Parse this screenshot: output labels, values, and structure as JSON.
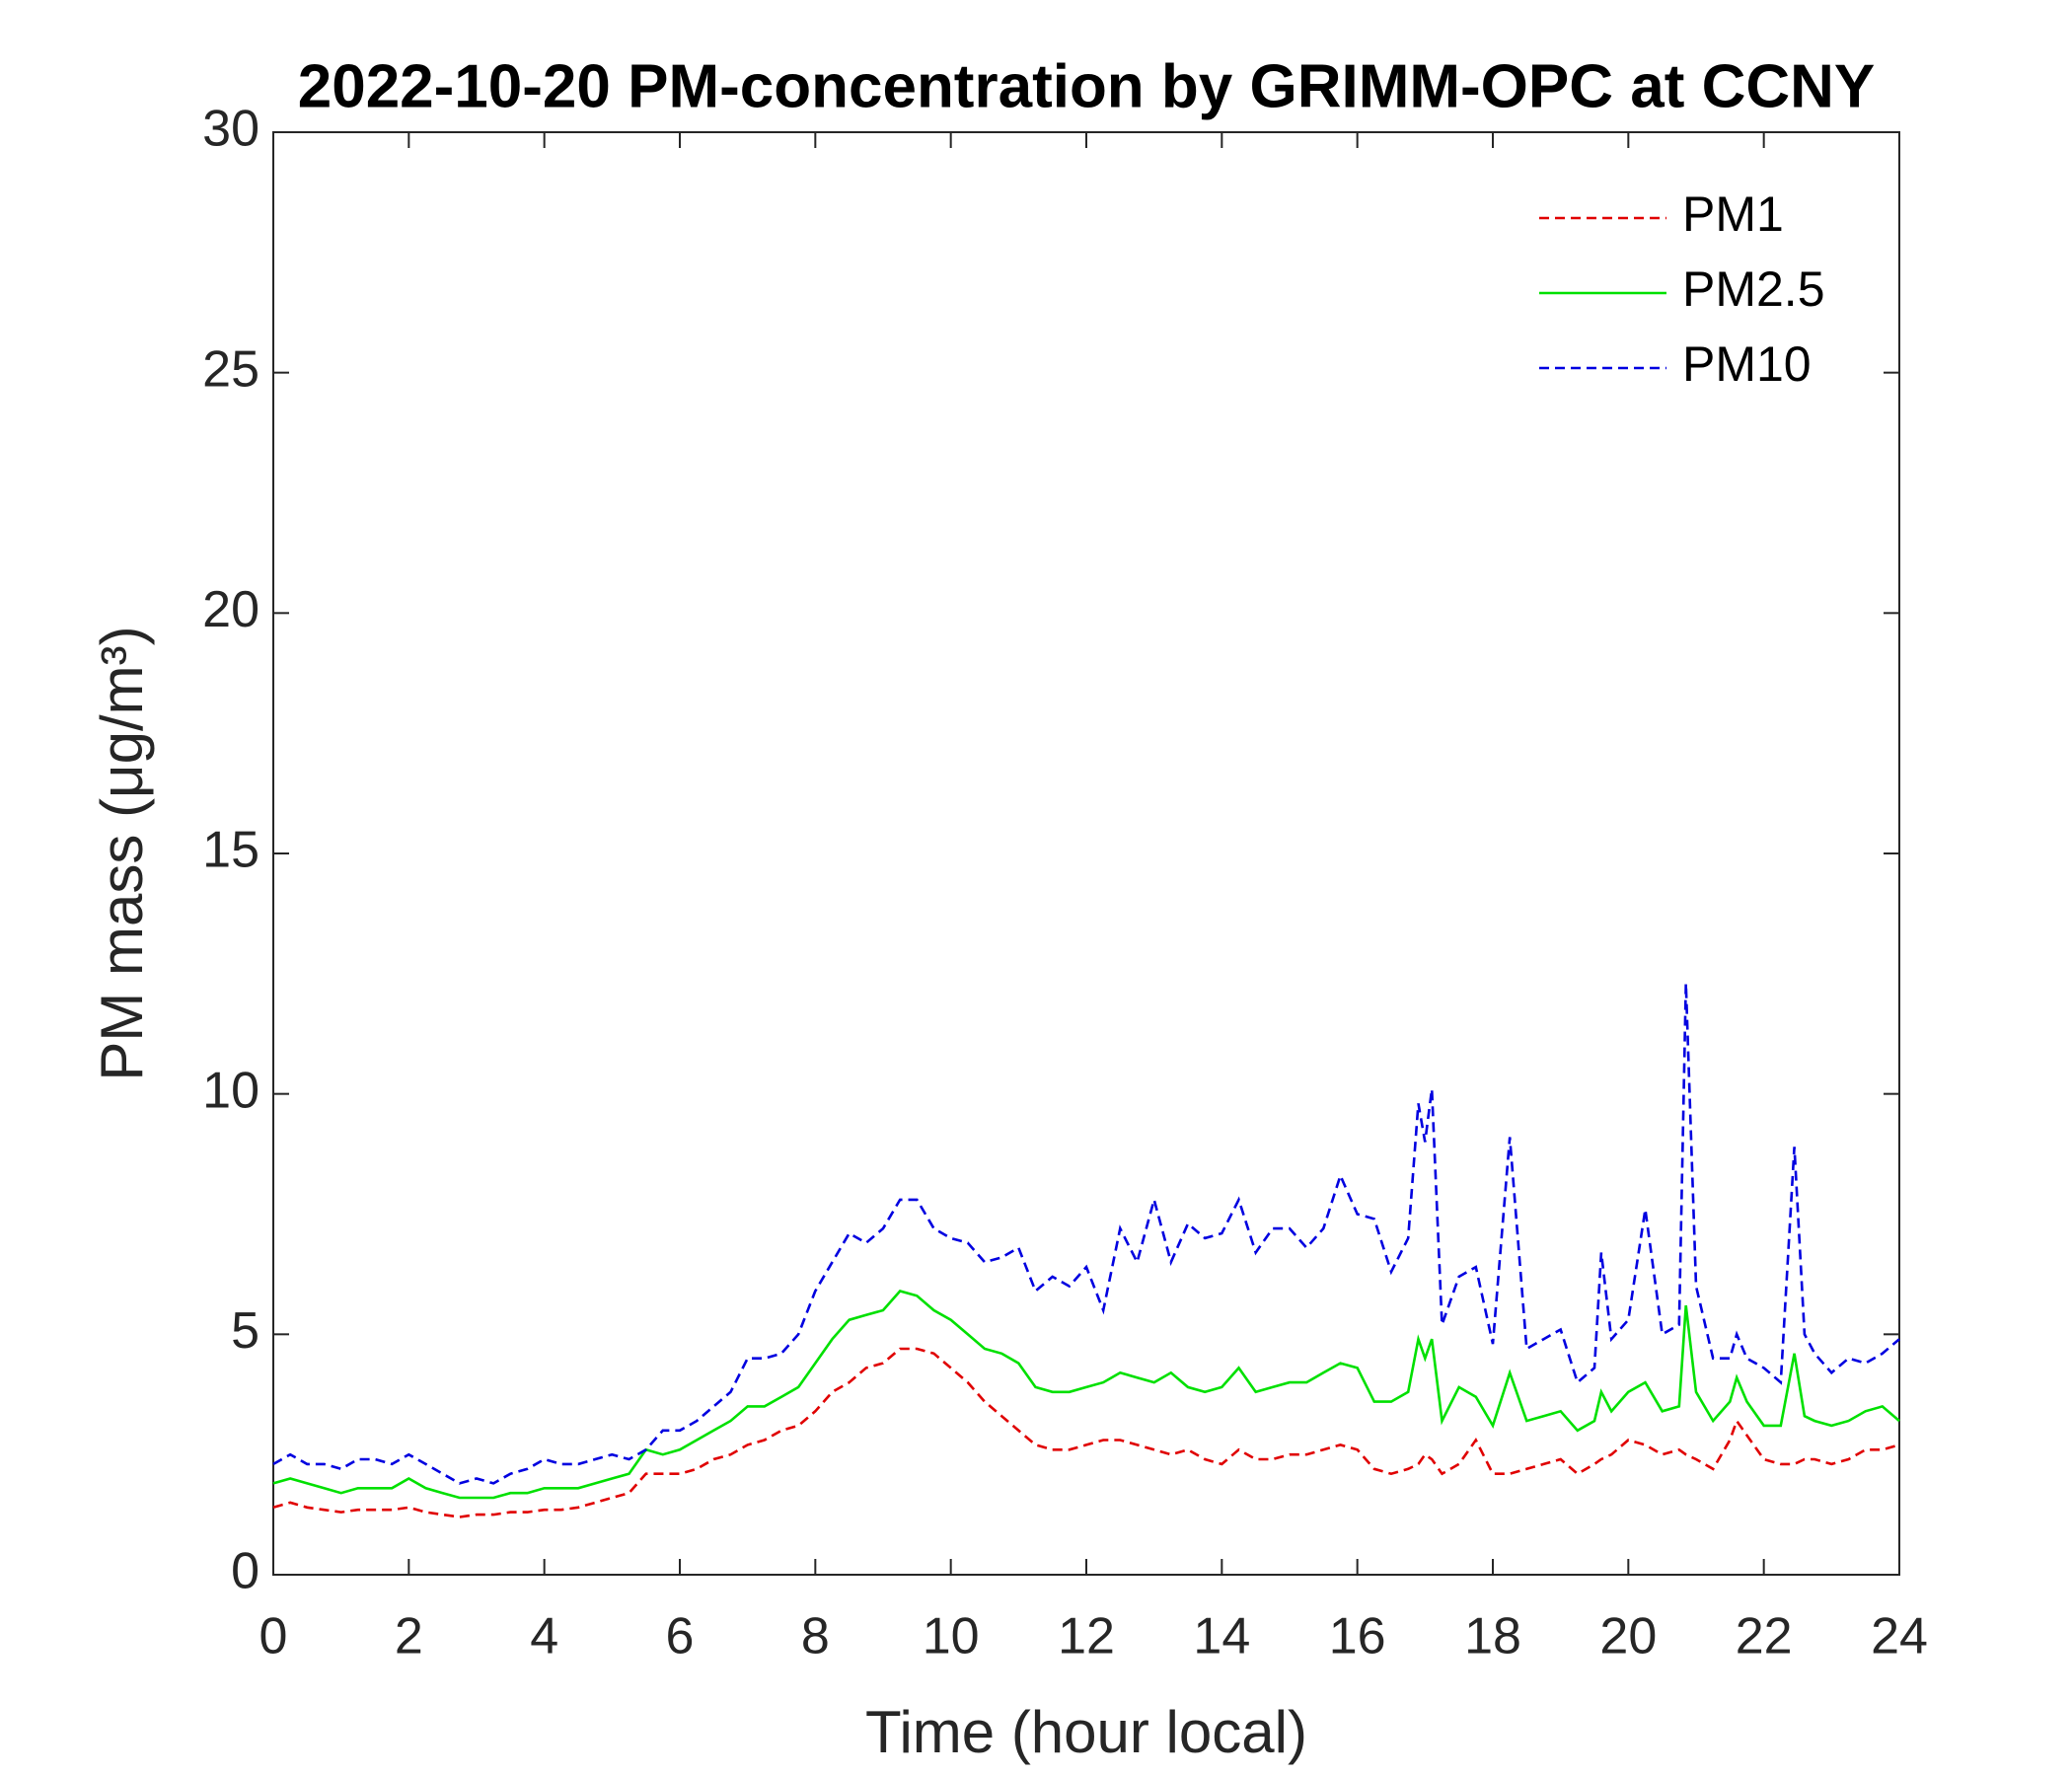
{
  "chart_data": {
    "type": "line",
    "title": "2022-10-20 PM-concentration by GRIMM-OPC at CCNY",
    "xlabel": "Time (hour local)",
    "ylabel": "PM mass (μg/m³)",
    "legend": "upper right",
    "x": [
      0,
      0.25,
      0.5,
      0.75,
      1,
      1.25,
      1.5,
      1.75,
      2,
      2.25,
      2.5,
      2.75,
      3,
      3.25,
      3.5,
      3.75,
      4,
      4.25,
      4.5,
      4.75,
      5,
      5.25,
      5.5,
      5.75,
      6,
      6.25,
      6.5,
      6.75,
      7,
      7.25,
      7.5,
      7.75,
      8,
      8.25,
      8.5,
      8.75,
      9,
      9.25,
      9.5,
      9.75,
      10,
      10.25,
      10.5,
      10.75,
      11,
      11.25,
      11.5,
      11.75,
      12,
      12.25,
      12.5,
      12.75,
      13,
      13.25,
      13.5,
      13.75,
      14,
      14.25,
      14.5,
      14.75,
      15,
      15.25,
      15.5,
      15.75,
      16,
      16.25,
      16.5,
      16.75,
      16.9,
      17,
      17.1,
      17.25,
      17.5,
      17.75,
      18,
      18.25,
      18.5,
      18.75,
      19,
      19.25,
      19.5,
      19.6,
      19.75,
      20,
      20.25,
      20.5,
      20.75,
      20.85,
      21,
      21.25,
      21.5,
      21.6,
      21.75,
      22,
      22.25,
      22.45,
      22.6,
      22.75,
      23,
      23.25,
      23.5,
      23.75,
      24
    ],
    "series": [
      {
        "name": "PM1",
        "color": "#e00000",
        "linestyle": "dashed",
        "values": [
          1.4,
          1.5,
          1.4,
          1.35,
          1.3,
          1.35,
          1.35,
          1.35,
          1.4,
          1.3,
          1.25,
          1.2,
          1.25,
          1.25,
          1.3,
          1.3,
          1.35,
          1.35,
          1.4,
          1.5,
          1.6,
          1.7,
          2.1,
          2.1,
          2.1,
          2.2,
          2.4,
          2.5,
          2.7,
          2.8,
          3.0,
          3.1,
          3.4,
          3.8,
          4.0,
          4.3,
          4.4,
          4.7,
          4.7,
          4.6,
          4.3,
          4.0,
          3.6,
          3.3,
          3.0,
          2.7,
          2.6,
          2.6,
          2.7,
          2.8,
          2.8,
          2.7,
          2.6,
          2.5,
          2.6,
          2.4,
          2.3,
          2.6,
          2.4,
          2.4,
          2.5,
          2.5,
          2.6,
          2.7,
          2.6,
          2.2,
          2.1,
          2.2,
          2.3,
          2.5,
          2.4,
          2.1,
          2.3,
          2.8,
          2.1,
          2.1,
          2.2,
          2.3,
          2.4,
          2.1,
          2.3,
          2.4,
          2.5,
          2.8,
          2.7,
          2.5,
          2.6,
          2.5,
          2.4,
          2.2,
          2.8,
          3.2,
          2.9,
          2.4,
          2.3,
          2.3,
          2.4,
          2.4,
          2.3,
          2.4,
          2.6,
          2.6,
          2.7
        ]
      },
      {
        "name": "PM2.5",
        "color": "#00e000",
        "linestyle": "solid",
        "values": [
          1.9,
          2.0,
          1.9,
          1.8,
          1.7,
          1.8,
          1.8,
          1.8,
          2.0,
          1.8,
          1.7,
          1.6,
          1.6,
          1.6,
          1.7,
          1.7,
          1.8,
          1.8,
          1.8,
          1.9,
          2.0,
          2.1,
          2.6,
          2.5,
          2.6,
          2.8,
          3.0,
          3.2,
          3.5,
          3.5,
          3.7,
          3.9,
          4.4,
          4.9,
          5.3,
          5.4,
          5.5,
          5.9,
          5.8,
          5.5,
          5.3,
          5.0,
          4.7,
          4.6,
          4.4,
          3.9,
          3.8,
          3.8,
          3.9,
          4.0,
          4.2,
          4.1,
          4.0,
          4.2,
          3.9,
          3.8,
          3.9,
          4.3,
          3.8,
          3.9,
          4.0,
          4.0,
          4.2,
          4.4,
          4.3,
          3.6,
          3.6,
          3.8,
          4.9,
          4.5,
          4.9,
          3.2,
          3.9,
          3.7,
          3.1,
          4.2,
          3.2,
          3.3,
          3.4,
          3.0,
          3.2,
          3.8,
          3.4,
          3.8,
          4.0,
          3.4,
          3.5,
          5.6,
          3.8,
          3.2,
          3.6,
          4.1,
          3.6,
          3.1,
          3.1,
          4.6,
          3.3,
          3.2,
          3.1,
          3.2,
          3.4,
          3.5,
          3.2
        ]
      },
      {
        "name": "PM10",
        "color": "#0000e0",
        "linestyle": "dashed",
        "values": [
          2.3,
          2.5,
          2.3,
          2.3,
          2.2,
          2.4,
          2.4,
          2.3,
          2.5,
          2.3,
          2.1,
          1.9,
          2.0,
          1.9,
          2.1,
          2.2,
          2.4,
          2.3,
          2.3,
          2.4,
          2.5,
          2.4,
          2.6,
          3.0,
          3.0,
          3.2,
          3.5,
          3.8,
          4.5,
          4.5,
          4.6,
          5.0,
          5.9,
          6.5,
          7.1,
          6.9,
          7.2,
          7.8,
          7.8,
          7.2,
          7.0,
          6.9,
          6.5,
          6.6,
          6.8,
          5.9,
          6.2,
          6.0,
          6.4,
          5.5,
          7.2,
          6.5,
          7.8,
          6.5,
          7.3,
          7.0,
          7.1,
          7.8,
          6.7,
          7.2,
          7.2,
          6.8,
          7.2,
          8.3,
          7.5,
          7.4,
          6.3,
          7.0,
          9.8,
          9.0,
          10.1,
          5.2,
          6.2,
          6.4,
          4.8,
          9.1,
          4.7,
          4.9,
          5.1,
          4.0,
          4.3,
          6.7,
          4.9,
          5.3,
          7.6,
          5.0,
          5.2,
          12.3,
          6.0,
          4.5,
          4.5,
          5.0,
          4.5,
          4.3,
          4.0,
          8.9,
          5.0,
          4.6,
          4.2,
          4.5,
          4.4,
          4.6,
          4.9
        ]
      }
    ],
    "xlim": [
      0,
      24
    ],
    "xticks": [
      0,
      2,
      4,
      6,
      8,
      10,
      12,
      14,
      16,
      18,
      20,
      22,
      24
    ],
    "ylim": [
      0,
      30
    ],
    "yticks": [
      0,
      5,
      10,
      15,
      20,
      25,
      30
    ],
    "grid": false
  }
}
